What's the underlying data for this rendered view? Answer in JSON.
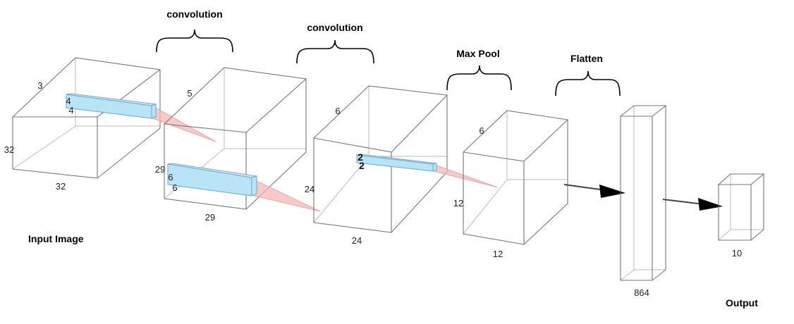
{
  "stages": {
    "conv1": "convolution",
    "conv2": "convolution",
    "pool": "Max Pool",
    "flatten": "Flatten"
  },
  "captions": {
    "input": "Input Image",
    "output": "Output"
  },
  "input_volume": {
    "depth": "3",
    "height": "32",
    "width": "32",
    "kernel_a": "4",
    "kernel_b": "4"
  },
  "conv1_volume": {
    "depth": "5",
    "height": "29",
    "width": "29",
    "kernel_a": "6",
    "kernel_b": "6"
  },
  "conv2_volume": {
    "depth": "6",
    "height": "24",
    "width": "24",
    "kernel_a": "2",
    "kernel_b": "2"
  },
  "pool_volume": {
    "depth": "6",
    "height": "12",
    "width": "12"
  },
  "flatten_layer": {
    "size": "864"
  },
  "output_layer": {
    "size": "10"
  }
}
